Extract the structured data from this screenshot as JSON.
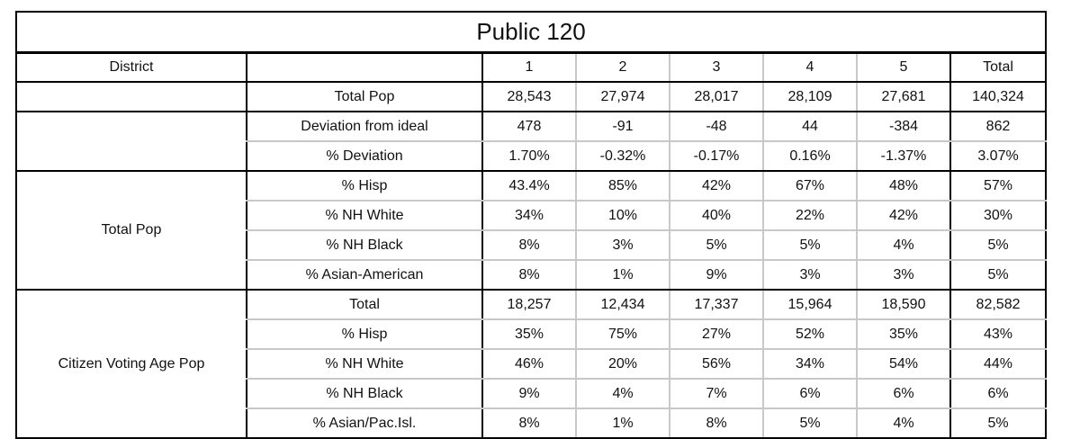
{
  "title": "Public 120",
  "header": {
    "district_label": "District",
    "blank": "",
    "columns": [
      "1",
      "2",
      "3",
      "4",
      "5",
      "Total"
    ]
  },
  "groups": [
    {
      "label": "",
      "rows": [
        {
          "label": "Total Pop",
          "values": [
            "28,543",
            "27,974",
            "28,017",
            "28,109",
            "27,681",
            "140,324"
          ]
        }
      ]
    },
    {
      "label": "",
      "rows": [
        {
          "label": "Deviation from ideal",
          "values": [
            "478",
            "-91",
            "-48",
            "44",
            "-384",
            "862"
          ]
        },
        {
          "label": "% Deviation",
          "values": [
            "1.70%",
            "-0.32%",
            "-0.17%",
            "0.16%",
            "-1.37%",
            "3.07%"
          ]
        }
      ]
    },
    {
      "label": "Total Pop",
      "rows": [
        {
          "label": "% Hisp",
          "values": [
            "43.4%",
            "85%",
            "42%",
            "67%",
            "48%",
            "57%"
          ]
        },
        {
          "label": "% NH White",
          "values": [
            "34%",
            "10%",
            "40%",
            "22%",
            "42%",
            "30%"
          ]
        },
        {
          "label": "% NH Black",
          "values": [
            "8%",
            "3%",
            "5%",
            "5%",
            "4%",
            "5%"
          ]
        },
        {
          "label": "% Asian-American",
          "values": [
            "8%",
            "1%",
            "9%",
            "3%",
            "3%",
            "5%"
          ]
        }
      ]
    },
    {
      "label": "Citizen Voting Age Pop",
      "rows": [
        {
          "label": "Total",
          "values": [
            "18,257",
            "12,434",
            "17,337",
            "15,964",
            "18,590",
            "82,582"
          ]
        },
        {
          "label": "% Hisp",
          "values": [
            "35%",
            "75%",
            "27%",
            "52%",
            "35%",
            "43%"
          ]
        },
        {
          "label": "% NH White",
          "values": [
            "46%",
            "20%",
            "56%",
            "34%",
            "54%",
            "44%"
          ]
        },
        {
          "label": "% NH Black",
          "values": [
            "9%",
            "4%",
            "7%",
            "6%",
            "6%",
            "6%"
          ]
        },
        {
          "label": "% Asian/Pac.Isl.",
          "values": [
            "8%",
            "1%",
            "8%",
            "5%",
            "4%",
            "5%"
          ]
        }
      ]
    }
  ]
}
